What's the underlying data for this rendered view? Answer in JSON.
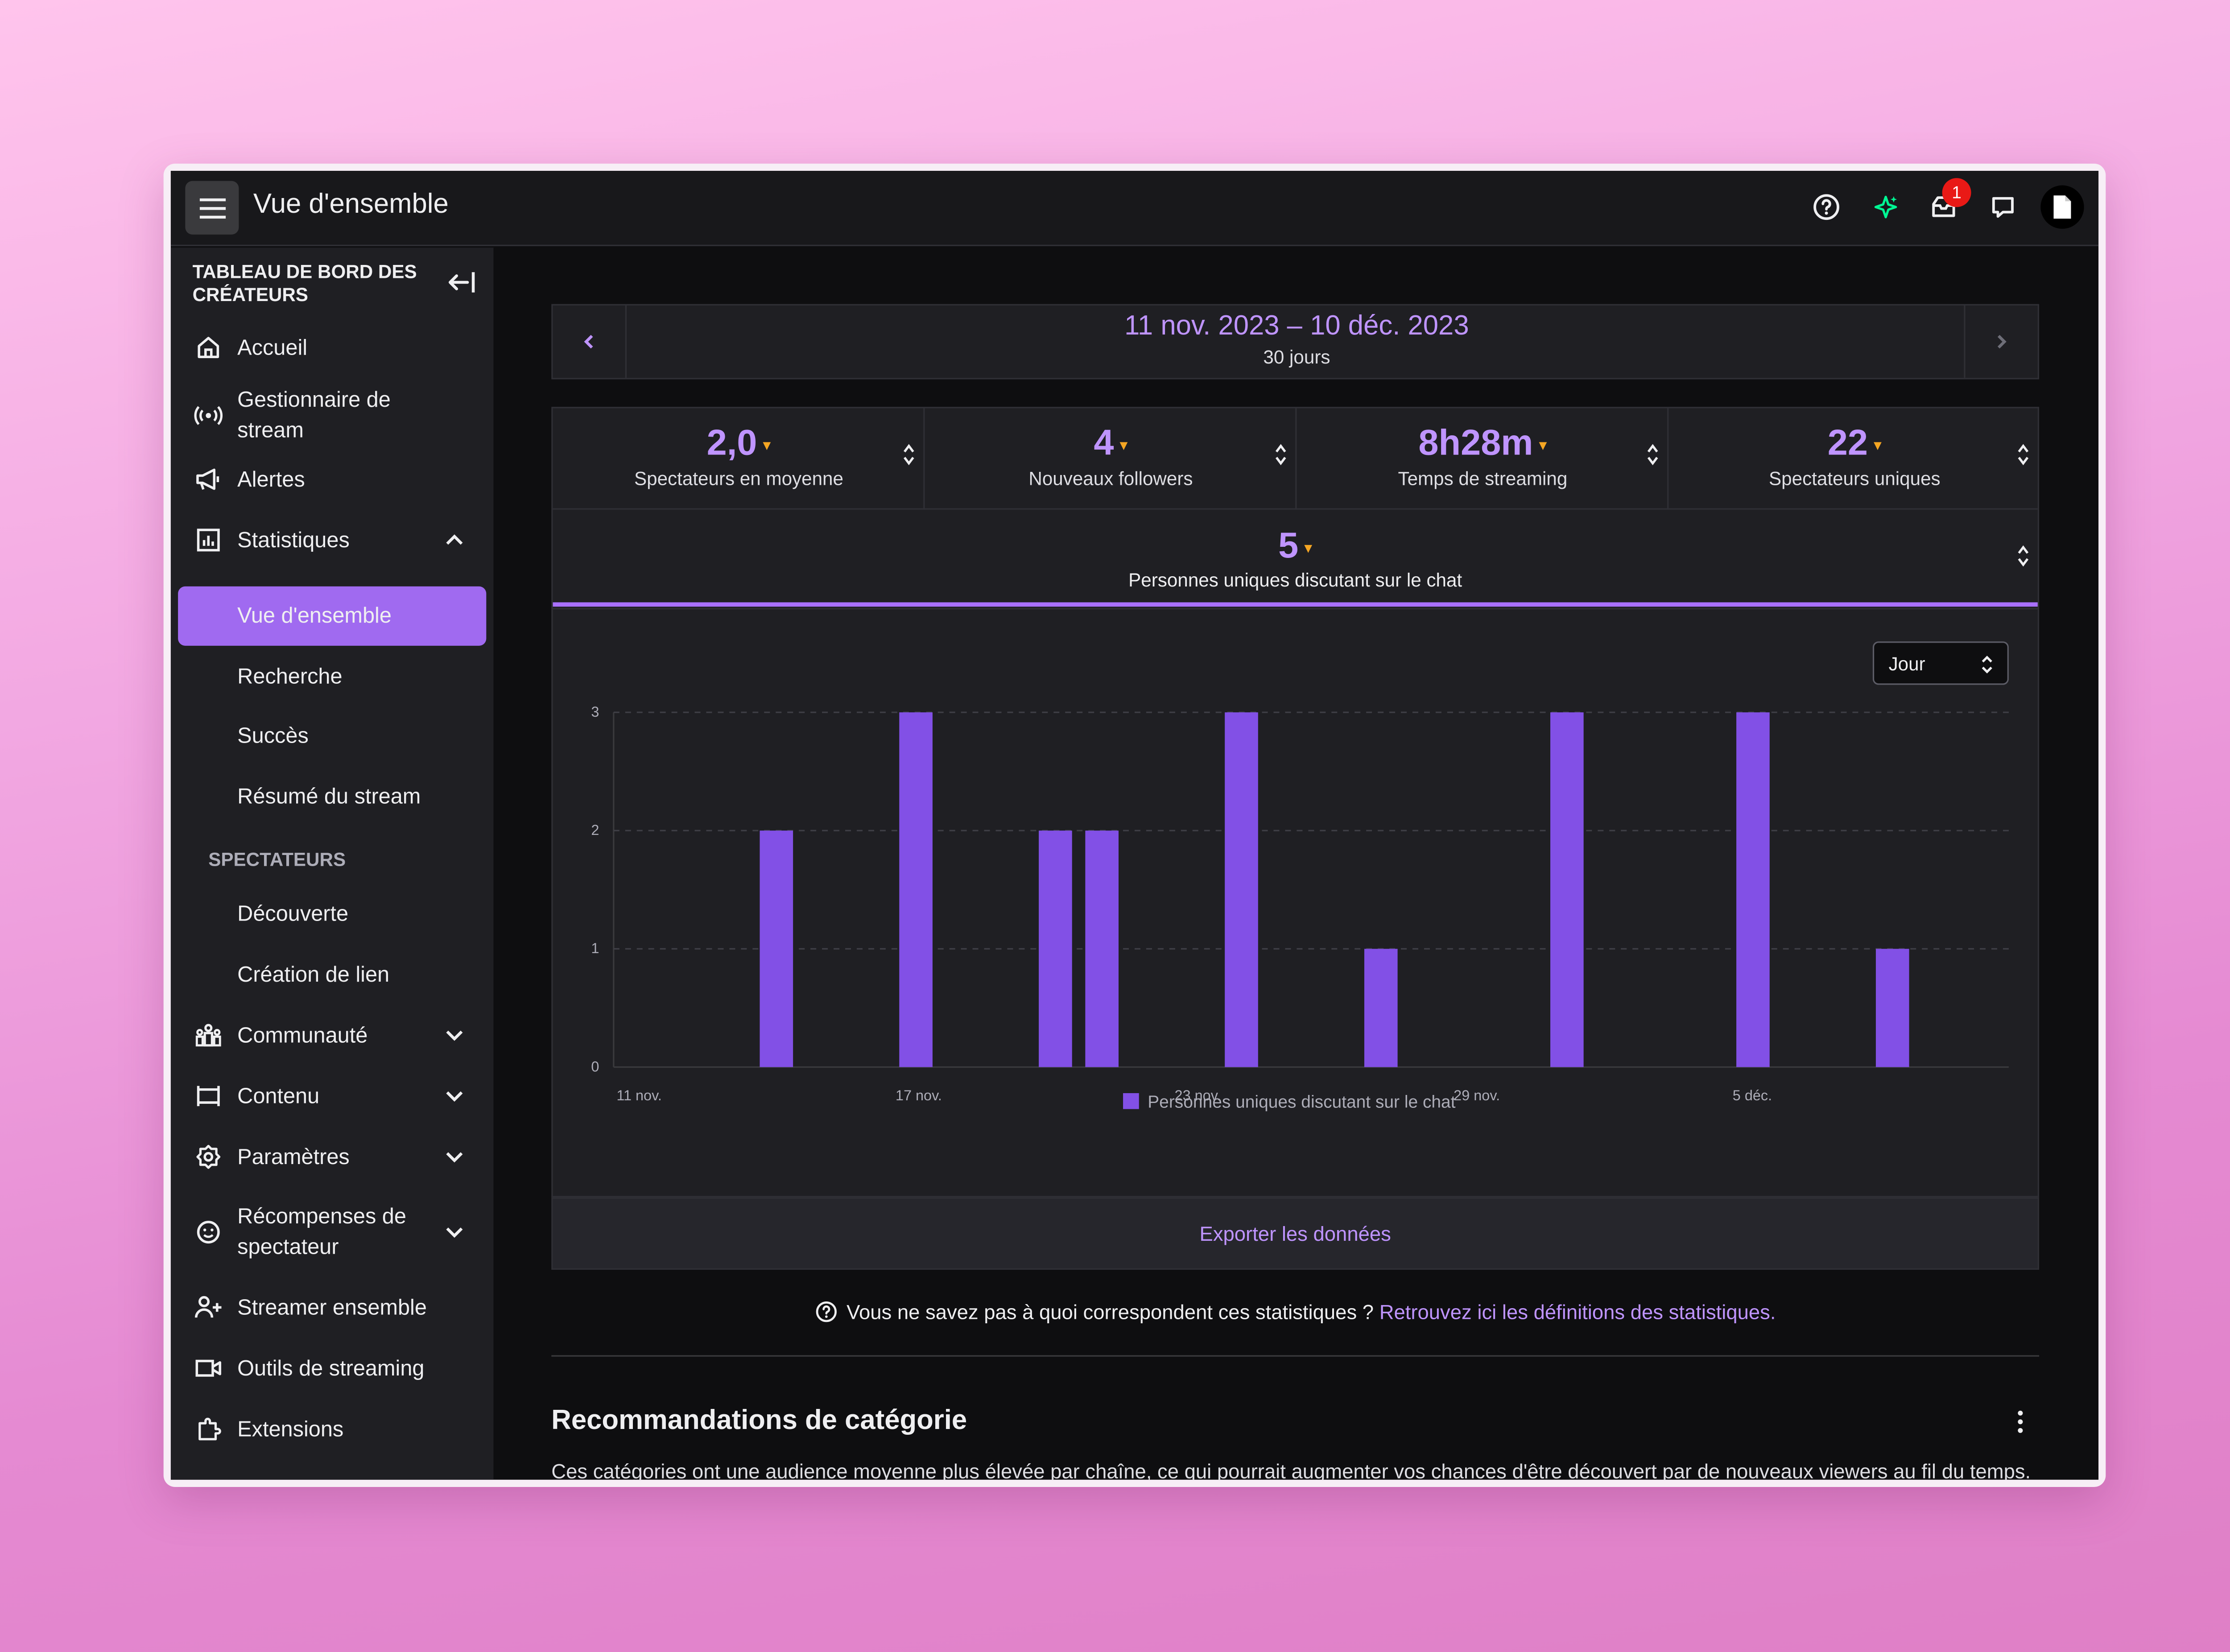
{
  "app": {
    "title": "Vue d'ensemble",
    "notification_count": "1"
  },
  "sidebar": {
    "header": "TABLEAU DE BORD DES CRÉATEURS",
    "items": [
      {
        "label": "Accueil",
        "icon": "home-icon"
      },
      {
        "label": "Gestionnaire de stream",
        "icon": "broadcast-icon"
      },
      {
        "label": "Alertes",
        "icon": "megaphone-icon"
      },
      {
        "label": "Statistiques",
        "icon": "stats-icon",
        "expanded": true
      },
      {
        "label": "Vue d'ensemble",
        "active": true
      },
      {
        "label": "Recherche"
      },
      {
        "label": "Succès"
      },
      {
        "label": "Résumé du stream"
      },
      {
        "label": "Découverte"
      },
      {
        "label": "Création de lien"
      },
      {
        "label": "Communauté",
        "icon": "community-icon"
      },
      {
        "label": "Contenu",
        "icon": "content-icon"
      },
      {
        "label": "Paramètres",
        "icon": "settings-icon"
      },
      {
        "label": "Récompenses de spectateur",
        "icon": "rewards-icon"
      },
      {
        "label": "Streamer ensemble",
        "icon": "add-user-icon"
      },
      {
        "label": "Outils de streaming",
        "icon": "camera-icon"
      },
      {
        "label": "Extensions",
        "icon": "extensions-icon"
      }
    ],
    "section_spectateurs": "SPECTATEURS"
  },
  "date_range": {
    "label": "11 nov. 2023 – 10 déc. 2023",
    "sub": "30 jours"
  },
  "stats": [
    {
      "value": "2,0",
      "label": "Spectateurs en moyenne"
    },
    {
      "value": "4",
      "label": "Nouveaux followers"
    },
    {
      "value": "8h28m",
      "label": "Temps de streaming"
    },
    {
      "value": "22",
      "label": "Spectateurs uniques"
    }
  ],
  "stat_selected": {
    "value": "5",
    "label": "Personnes uniques discutant sur le chat"
  },
  "granularity": {
    "selected": "Jour"
  },
  "chart_data": {
    "type": "bar",
    "x": [
      "11 nov.",
      "12 nov.",
      "13 nov.",
      "14 nov.",
      "15 nov.",
      "16 nov.",
      "17 nov.",
      "18 nov.",
      "19 nov.",
      "20 nov.",
      "21 nov.",
      "22 nov.",
      "23 nov.",
      "24 nov.",
      "25 nov.",
      "26 nov.",
      "27 nov.",
      "28 nov.",
      "29 nov.",
      "30 nov.",
      "1 déc.",
      "2 déc.",
      "3 déc.",
      "4 déc.",
      "5 déc.",
      "6 déc.",
      "7 déc.",
      "8 déc.",
      "9 déc.",
      "10 déc."
    ],
    "x_tick_labels": [
      "11 nov.",
      "17 nov.",
      "23 nov.",
      "29 nov.",
      "5 déc."
    ],
    "series": [
      {
        "name": "Personnes uniques discutant sur le chat",
        "values": [
          0,
          0,
          0,
          2,
          0,
          0,
          3,
          0,
          0,
          2,
          2,
          0,
          0,
          3,
          0,
          0,
          1,
          0,
          0,
          0,
          3,
          0,
          0,
          0,
          3,
          0,
          0,
          1,
          0,
          0
        ]
      }
    ],
    "ylim": [
      0,
      3
    ],
    "yticks": [
      0,
      1,
      2,
      3
    ],
    "grid": true,
    "legend": "bottom-center",
    "color": "#8250e6"
  },
  "export_label": "Exporter les données",
  "help": {
    "text": "Vous ne savez pas à quoi correspondent ces statistiques ?",
    "link": "Retrouvez ici les définitions des statistiques."
  },
  "recommendations": {
    "title": "Recommandations de catégorie",
    "desc": "Ces catégories ont une audience moyenne plus élevée par chaîne, ce qui pourrait augmenter vos chances d'être découvert par de nouveaux viewers au fil du temps."
  },
  "colors": {
    "accent": "#bf94ff",
    "active_nav": "#a06af0",
    "bar": "#8250e6",
    "caret": "#f5a623"
  }
}
